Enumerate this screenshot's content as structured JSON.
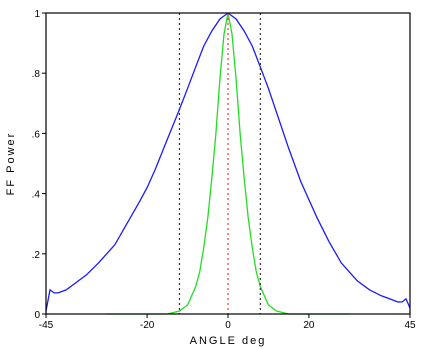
{
  "chart_data": {
    "type": "line",
    "title": "",
    "xlabel": "ANGLE deg",
    "ylabel": "FF Power",
    "xlim": [
      -45,
      45
    ],
    "ylim": [
      0,
      1
    ],
    "x_ticks": [
      {
        "value": -45,
        "label": "-45"
      },
      {
        "value": -20,
        "label": "-20"
      },
      {
        "value": 0,
        "label": "0"
      },
      {
        "value": 20,
        "label": "20"
      },
      {
        "value": 45,
        "label": "45"
      }
    ],
    "y_ticks": [
      {
        "value": 0,
        "label": "0"
      },
      {
        "value": 0.2,
        "label": ".2"
      },
      {
        "value": 0.4,
        "label": ".4"
      },
      {
        "value": 0.6,
        "label": ".6"
      },
      {
        "value": 0.8,
        "label": ".8"
      },
      {
        "value": 1,
        "label": "1"
      }
    ],
    "grid": false,
    "series": [
      {
        "color": "#1a1aff",
        "style": "solid",
        "x": [
          -45,
          -44,
          -43,
          -42,
          -40,
          -38,
          -35,
          -32,
          -30,
          -28,
          -25,
          -22,
          -20,
          -18,
          -15,
          -12,
          -10,
          -8,
          -6,
          -4,
          -2,
          0,
          2,
          4,
          6,
          8,
          10,
          12,
          15,
          18,
          20,
          22,
          25,
          28,
          30,
          32,
          35,
          38,
          40,
          42,
          43,
          44,
          45
        ],
        "y": [
          0.01,
          0.08,
          0.07,
          0.07,
          0.08,
          0.1,
          0.13,
          0.17,
          0.2,
          0.23,
          0.3,
          0.37,
          0.42,
          0.48,
          0.58,
          0.68,
          0.75,
          0.82,
          0.89,
          0.94,
          0.98,
          1.0,
          0.98,
          0.94,
          0.89,
          0.82,
          0.75,
          0.67,
          0.55,
          0.44,
          0.38,
          0.32,
          0.24,
          0.17,
          0.14,
          0.11,
          0.08,
          0.06,
          0.05,
          0.04,
          0.04,
          0.05,
          0.02
        ]
      },
      {
        "color": "#22dd22",
        "style": "solid",
        "x": [
          -30,
          -15,
          -12,
          -10,
          -8,
          -7,
          -6,
          -5,
          -4,
          -3,
          -2,
          -1,
          0,
          1,
          2,
          3,
          4,
          5,
          6,
          7,
          8,
          10,
          12,
          15,
          30
        ],
        "y": [
          0,
          0,
          0.01,
          0.03,
          0.09,
          0.14,
          0.22,
          0.32,
          0.45,
          0.6,
          0.78,
          0.93,
          1.0,
          0.93,
          0.78,
          0.6,
          0.45,
          0.32,
          0.22,
          0.14,
          0.09,
          0.03,
          0.01,
          0,
          0
        ]
      }
    ],
    "vlines": [
      {
        "x": -12,
        "color": "#333333",
        "style": "dotted"
      },
      {
        "x": 0,
        "color": "#ff3333",
        "style": "dotted"
      },
      {
        "x": 8,
        "color": "#333333",
        "style": "dotted"
      }
    ]
  }
}
